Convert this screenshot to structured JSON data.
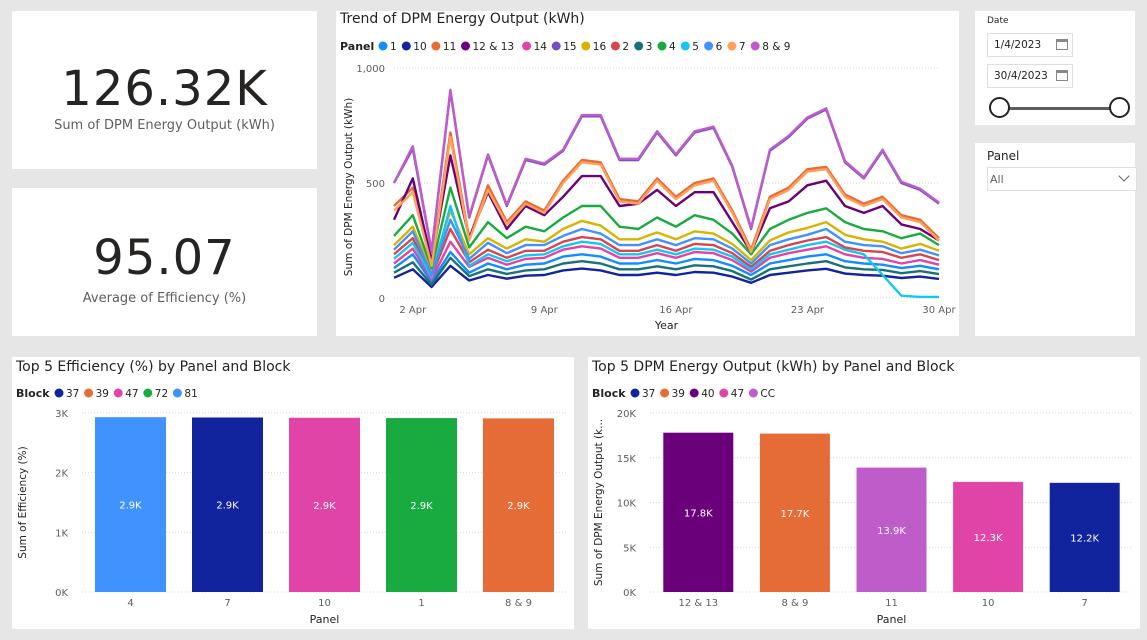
{
  "kpi_total": {
    "value": "126.32K",
    "label": "Sum of DPM Energy Output (kWh)"
  },
  "kpi_efficiency": {
    "value": "95.07",
    "label": "Average of Efficiency (%)"
  },
  "date_slicer": {
    "title": "Date",
    "start": "1/4/2023",
    "end": "30/4/2023",
    "range_fraction": [
      0,
      1
    ]
  },
  "panel_slicer": {
    "title": "Panel",
    "selected": "All"
  },
  "chart_data": [
    {
      "type": "line",
      "title": "Trend of DPM Energy Output (kWh)",
      "legend_title": "Panel",
      "xlabel": "Year",
      "ylabel": "Sum of DPM Energy Output (kWh)",
      "x_tick_labels": [
        "2 Apr",
        "9 Apr",
        "16 Apr",
        "23 Apr",
        "30 Apr"
      ],
      "x_tick_days": [
        2,
        9,
        16,
        23,
        30
      ],
      "y_tick_labels": [
        "0",
        "500",
        "1,000"
      ],
      "y_tick_values": [
        0,
        500,
        1000
      ],
      "ylim": [
        0,
        1000
      ],
      "x": [
        1,
        2,
        3,
        4,
        5,
        6,
        7,
        8,
        9,
        10,
        11,
        12,
        13,
        14,
        15,
        16,
        17,
        18,
        19,
        20,
        21,
        22,
        23,
        24,
        25,
        26,
        27,
        28,
        29,
        30
      ],
      "series": [
        {
          "name": "1",
          "color": "#118dff",
          "values": [
            130,
            190,
            70,
            200,
            110,
            150,
            125,
            145,
            150,
            180,
            190,
            180,
            150,
            150,
            165,
            150,
            170,
            165,
            140,
            100,
            150,
            165,
            180,
            190,
            160,
            150,
            145,
            130,
            140,
            125
          ]
        },
        {
          "name": "10",
          "color": "#12239e",
          "values": [
            88,
            125,
            48,
            140,
            76,
            100,
            84,
            97,
            100,
            120,
            128,
            120,
            100,
            100,
            110,
            100,
            113,
            110,
            93,
            66,
            100,
            110,
            120,
            127,
            106,
            100,
            97,
            87,
            93,
            83
          ]
        },
        {
          "name": "11",
          "color": "#e66c37",
          "values": [
            400,
            480,
            150,
            720,
            260,
            490,
            330,
            420,
            380,
            510,
            600,
            590,
            430,
            420,
            520,
            440,
            500,
            520,
            380,
            210,
            440,
            480,
            560,
            570,
            450,
            410,
            440,
            360,
            340,
            260
          ]
        },
        {
          "name": "12 & 13",
          "color": "#6b007b",
          "values": [
            340,
            520,
            160,
            620,
            260,
            460,
            300,
            400,
            360,
            440,
            530,
            530,
            400,
            410,
            470,
            400,
            460,
            460,
            330,
            200,
            390,
            420,
            490,
            510,
            400,
            370,
            400,
            320,
            300,
            250
          ]
        },
        {
          "name": "14",
          "color": "#e044a7",
          "values": [
            150,
            215,
            80,
            245,
            135,
            175,
            145,
            170,
            175,
            210,
            225,
            215,
            175,
            175,
            195,
            175,
            200,
            195,
            165,
            115,
            175,
            195,
            210,
            225,
            190,
            175,
            170,
            150,
            165,
            145
          ]
        },
        {
          "name": "15",
          "color": "#744ec2",
          "values": [
            500,
            650,
            200,
            900,
            350,
            620,
            400,
            600,
            580,
            640,
            790,
            790,
            600,
            600,
            720,
            620,
            720,
            740,
            570,
            300,
            640,
            700,
            780,
            820,
            590,
            520,
            640,
            500,
            470,
            410
          ]
        },
        {
          "name": "16",
          "color": "#d9b300",
          "values": [
            230,
            310,
            120,
            380,
            190,
            260,
            215,
            255,
            245,
            300,
            335,
            315,
            255,
            255,
            285,
            255,
            290,
            280,
            235,
            165,
            250,
            285,
            305,
            330,
            275,
            255,
            245,
            215,
            235,
            205
          ]
        },
        {
          "name": "2",
          "color": "#d64550",
          "values": [
            190,
            260,
            95,
            300,
            155,
            210,
            175,
            205,
            205,
            245,
            265,
            255,
            205,
            205,
            230,
            205,
            235,
            230,
            195,
            135,
            205,
            230,
            250,
            265,
            220,
            205,
            200,
            175,
            190,
            165
          ]
        },
        {
          "name": "3",
          "color": "#197278",
          "values": [
            110,
            155,
            58,
            175,
            95,
            125,
            105,
            120,
            125,
            150,
            160,
            150,
            125,
            125,
            138,
            125,
            142,
            138,
            117,
            80,
            125,
            138,
            150,
            160,
            133,
            125,
            122,
            108,
            117,
            104
          ]
        },
        {
          "name": "4",
          "color": "#1aab40",
          "values": [
            270,
            360,
            130,
            480,
            220,
            330,
            260,
            310,
            290,
            350,
            400,
            400,
            310,
            300,
            350,
            310,
            360,
            340,
            280,
            190,
            300,
            340,
            370,
            390,
            330,
            300,
            290,
            260,
            280,
            230
          ]
        },
        {
          "name": "5",
          "color": "#15c6f4",
          "values": [
            170,
            240,
            90,
            400,
            140,
            190,
            160,
            185,
            190,
            225,
            245,
            235,
            190,
            190,
            210,
            190,
            215,
            210,
            180,
            125,
            190,
            210,
            230,
            245,
            210,
            190,
            100,
            10,
            5,
            5
          ]
        },
        {
          "name": "6",
          "color": "#4092ff",
          "values": [
            210,
            290,
            100,
            340,
            170,
            240,
            195,
            230,
            230,
            270,
            300,
            280,
            230,
            230,
            255,
            230,
            260,
            255,
            215,
            150,
            230,
            255,
            275,
            300,
            245,
            230,
            225,
            195,
            210,
            185
          ]
        },
        {
          "name": "7",
          "color": "#ffa058",
          "values": [
            380,
            460,
            140,
            700,
            250,
            470,
            320,
            410,
            370,
            500,
            590,
            580,
            420,
            410,
            510,
            430,
            490,
            510,
            370,
            200,
            430,
            470,
            550,
            560,
            440,
            400,
            430,
            350,
            330,
            250
          ]
        },
        {
          "name": "8 & 9",
          "color": "#be5dc9",
          "values": [
            500,
            660,
            205,
            905,
            355,
            625,
            405,
            605,
            585,
            645,
            795,
            795,
            605,
            605,
            725,
            625,
            725,
            745,
            575,
            305,
            645,
            705,
            785,
            825,
            595,
            525,
            645,
            505,
            475,
            415
          ]
        }
      ]
    },
    {
      "type": "bar",
      "title": "Top 5 Efficiency (%) by Panel and Block",
      "legend_title": "Block",
      "legend": [
        {
          "name": "37",
          "color": "#12239e"
        },
        {
          "name": "39",
          "color": "#e66c37"
        },
        {
          "name": "47",
          "color": "#e044a7"
        },
        {
          "name": "72",
          "color": "#1aab40"
        },
        {
          "name": "81",
          "color": "#4092ff"
        }
      ],
      "xlabel": "Panel",
      "ylabel": "Sum of Efficiency (%)",
      "y_tick_labels": [
        "0K",
        "1K",
        "2K",
        "3K"
      ],
      "y_tick_values": [
        0,
        1000,
        2000,
        3000
      ],
      "ylim": [
        0,
        3000
      ],
      "categories": [
        "4",
        "7",
        "10",
        "1",
        "8 & 9"
      ],
      "values": [
        2930,
        2925,
        2920,
        2915,
        2910
      ],
      "bar_labels": [
        "2.9K",
        "2.9K",
        "2.9K",
        "2.9K",
        "2.9K"
      ],
      "bar_colors": [
        "#4092ff",
        "#12239e",
        "#e044a7",
        "#1aab40",
        "#e66c37"
      ]
    },
    {
      "type": "bar",
      "title": "Top 5 DPM Energy Output (kWh) by Panel and Block",
      "legend_title": "Block",
      "legend": [
        {
          "name": "37",
          "color": "#12239e"
        },
        {
          "name": "39",
          "color": "#e66c37"
        },
        {
          "name": "40",
          "color": "#6b007b"
        },
        {
          "name": "47",
          "color": "#e044a7"
        },
        {
          "name": "CC",
          "color": "#be5dc9"
        }
      ],
      "xlabel": "Panel",
      "ylabel": "Sum of DPM Energy Output (k...",
      "y_tick_labels": [
        "0K",
        "5K",
        "10K",
        "15K",
        "20K"
      ],
      "y_tick_values": [
        0,
        5000,
        10000,
        15000,
        20000
      ],
      "ylim": [
        0,
        20000
      ],
      "categories": [
        "12 & 13",
        "8 & 9",
        "11",
        "10",
        "7"
      ],
      "values": [
        17800,
        17700,
        13900,
        12300,
        12200
      ],
      "bar_labels": [
        "17.8K",
        "17.7K",
        "13.9K",
        "12.3K",
        "12.2K"
      ],
      "bar_colors": [
        "#6b007b",
        "#e66c37",
        "#be5dc9",
        "#e044a7",
        "#12239e"
      ]
    }
  ]
}
